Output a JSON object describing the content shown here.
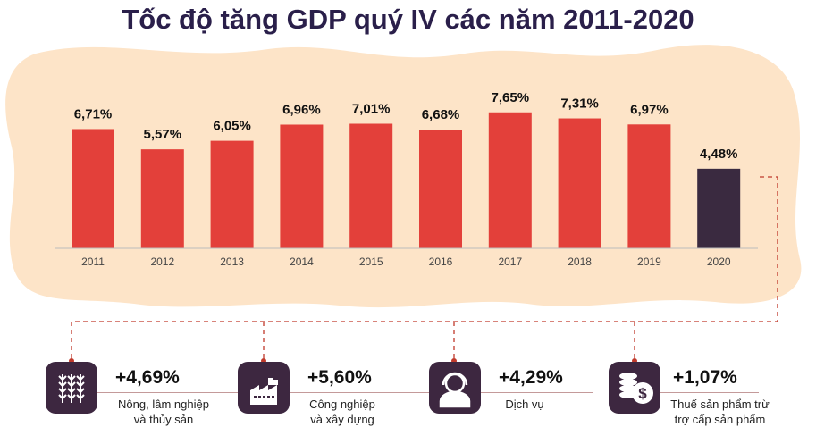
{
  "chart_data": {
    "type": "bar",
    "title": "Tốc độ tăng GDP quý IV các năm 2011-2020",
    "categories": [
      "2011",
      "2012",
      "2013",
      "2014",
      "2015",
      "2016",
      "2017",
      "2018",
      "2019",
      "2020"
    ],
    "values": [
      6.71,
      5.57,
      6.05,
      6.96,
      7.01,
      6.68,
      7.65,
      7.31,
      6.97,
      4.48
    ],
    "data_labels": [
      "6,71%",
      "5,57%",
      "6,05%",
      "6,96%",
      "7,01%",
      "6,68%",
      "7,65%",
      "7,31%",
      "6,97%",
      "4,48%"
    ],
    "ylim": [
      0,
      8
    ],
    "grid": false,
    "colors": {
      "bar": "#e3403a",
      "highlight": "#3a2a40",
      "background_blob": "#fde4c8",
      "connector": "#c0392b"
    }
  },
  "breakdown": [
    {
      "value": "+4,69%",
      "label_lines": [
        "Nông, lâm nghiệp",
        "và thủy sản"
      ],
      "icon": "wheat-icon"
    },
    {
      "value": "+5,60%",
      "label_lines": [
        "Công nghiệp",
        "và xây dựng"
      ],
      "icon": "factory-icon"
    },
    {
      "value": "+4,29%",
      "label_lines": [
        "Dịch vụ"
      ],
      "icon": "service-worker-icon"
    },
    {
      "value": "+1,07%",
      "label_lines": [
        "Thuế sản phẩm trừ",
        "trợ cấp sản phẩm"
      ],
      "icon": "coins-dollar-icon"
    }
  ]
}
